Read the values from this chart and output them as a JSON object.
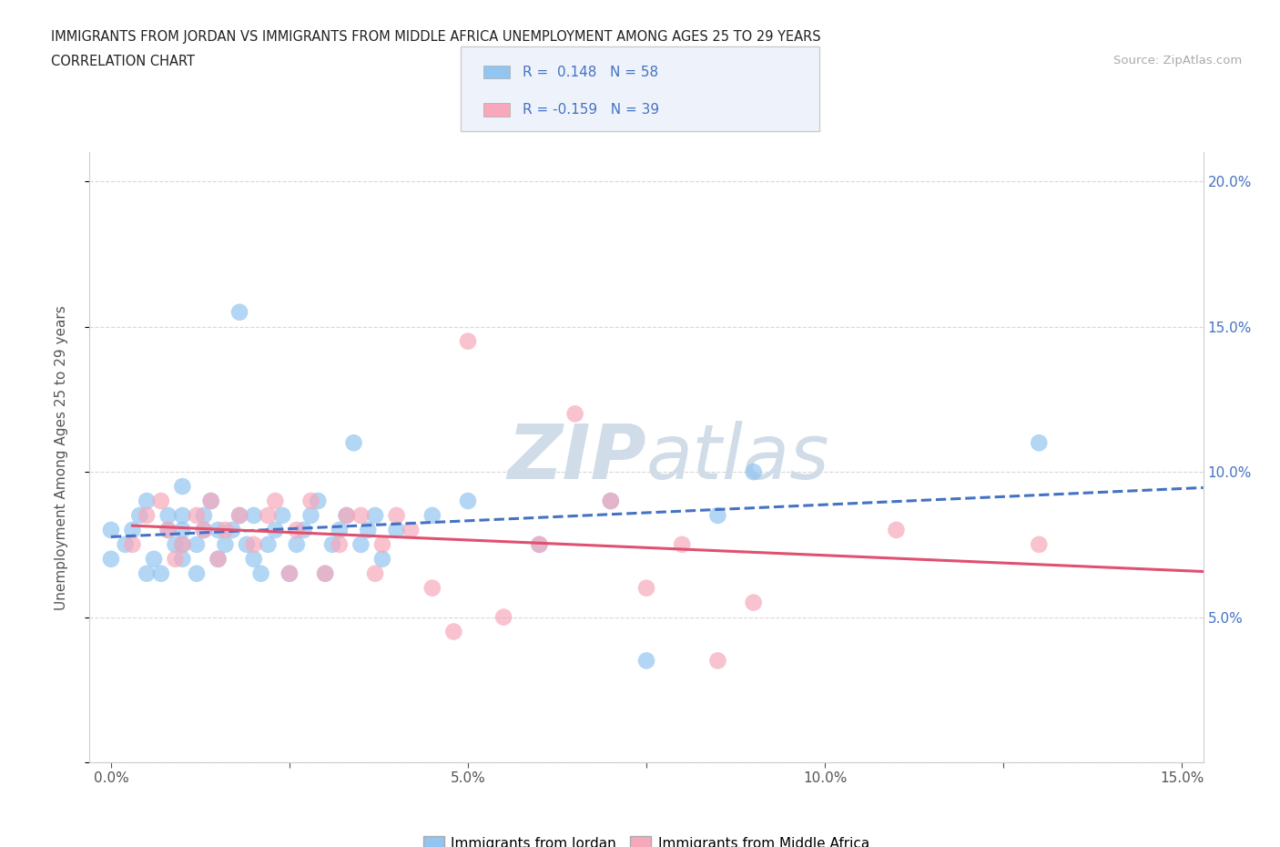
{
  "title_line1": "IMMIGRANTS FROM JORDAN VS IMMIGRANTS FROM MIDDLE AFRICA UNEMPLOYMENT AMONG AGES 25 TO 29 YEARS",
  "title_line2": "CORRELATION CHART",
  "source_text": "Source: ZipAtlas.com",
  "ylabel": "Unemployment Among Ages 25 to 29 years",
  "xlim": [
    -0.003,
    0.153
  ],
  "ylim": [
    0.0,
    0.21
  ],
  "xticks": [
    0.0,
    0.025,
    0.05,
    0.075,
    0.1,
    0.125,
    0.15
  ],
  "xtick_labels": [
    "0.0%",
    "",
    "5.0%",
    "",
    "10.0%",
    "",
    "15.0%"
  ],
  "yticks": [
    0.0,
    0.05,
    0.1,
    0.15,
    0.2
  ],
  "ytick_labels_right": [
    "",
    "5.0%",
    "10.0%",
    "15.0%",
    "20.0%"
  ],
  "jordan_color": "#92c5f0",
  "jordan_line_color": "#4472c4",
  "jordan_line_dash": "--",
  "middle_africa_color": "#f7a8bb",
  "middle_africa_line_color": "#e05070",
  "middle_africa_line_dash": "-",
  "R_jordan": 0.148,
  "N_jordan": 58,
  "R_middle_africa": -0.159,
  "N_middle_africa": 39,
  "jordan_scatter_x": [
    0.0,
    0.0,
    0.002,
    0.003,
    0.004,
    0.005,
    0.005,
    0.006,
    0.007,
    0.008,
    0.008,
    0.009,
    0.01,
    0.01,
    0.01,
    0.01,
    0.01,
    0.012,
    0.012,
    0.013,
    0.013,
    0.014,
    0.015,
    0.015,
    0.016,
    0.017,
    0.018,
    0.018,
    0.019,
    0.02,
    0.02,
    0.021,
    0.022,
    0.023,
    0.024,
    0.025,
    0.026,
    0.027,
    0.028,
    0.029,
    0.03,
    0.031,
    0.032,
    0.033,
    0.034,
    0.035,
    0.036,
    0.037,
    0.038,
    0.04,
    0.045,
    0.05,
    0.06,
    0.07,
    0.075,
    0.085,
    0.09,
    0.13
  ],
  "jordan_scatter_y": [
    0.07,
    0.08,
    0.075,
    0.08,
    0.085,
    0.065,
    0.09,
    0.07,
    0.065,
    0.08,
    0.085,
    0.075,
    0.07,
    0.075,
    0.08,
    0.085,
    0.095,
    0.065,
    0.075,
    0.08,
    0.085,
    0.09,
    0.07,
    0.08,
    0.075,
    0.08,
    0.085,
    0.155,
    0.075,
    0.07,
    0.085,
    0.065,
    0.075,
    0.08,
    0.085,
    0.065,
    0.075,
    0.08,
    0.085,
    0.09,
    0.065,
    0.075,
    0.08,
    0.085,
    0.11,
    0.075,
    0.08,
    0.085,
    0.07,
    0.08,
    0.085,
    0.09,
    0.075,
    0.09,
    0.035,
    0.085,
    0.1,
    0.11
  ],
  "middle_africa_scatter_x": [
    0.003,
    0.005,
    0.007,
    0.008,
    0.009,
    0.01,
    0.012,
    0.013,
    0.014,
    0.015,
    0.016,
    0.018,
    0.02,
    0.022,
    0.023,
    0.025,
    0.026,
    0.028,
    0.03,
    0.032,
    0.033,
    0.035,
    0.037,
    0.038,
    0.04,
    0.042,
    0.045,
    0.048,
    0.05,
    0.055,
    0.06,
    0.065,
    0.07,
    0.075,
    0.08,
    0.085,
    0.09,
    0.11,
    0.13
  ],
  "middle_africa_scatter_y": [
    0.075,
    0.085,
    0.09,
    0.08,
    0.07,
    0.075,
    0.085,
    0.08,
    0.09,
    0.07,
    0.08,
    0.085,
    0.075,
    0.085,
    0.09,
    0.065,
    0.08,
    0.09,
    0.065,
    0.075,
    0.085,
    0.085,
    0.065,
    0.075,
    0.085,
    0.08,
    0.06,
    0.045,
    0.145,
    0.05,
    0.075,
    0.12,
    0.09,
    0.06,
    0.075,
    0.035,
    0.055,
    0.08,
    0.075
  ],
  "background_color": "#ffffff",
  "grid_color": "#d8d8d8",
  "watermark_color": "#d0dce8",
  "legend_box_color": "#eef3fb",
  "right_tick_color": "#4472c4"
}
